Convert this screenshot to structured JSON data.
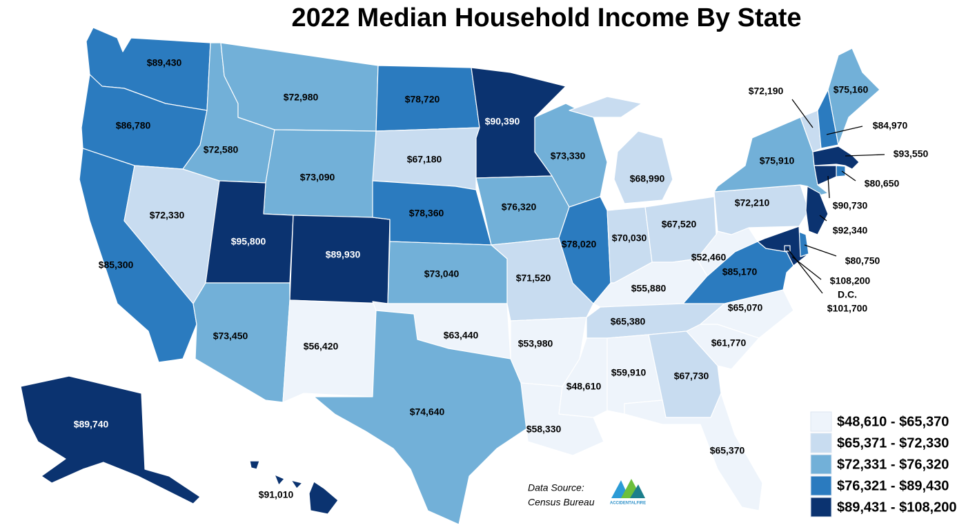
{
  "title": "2022 Median Household Income By State",
  "states": [
    {
      "label": "$89,430",
      "color": "#2b7bbf"
    },
    {
      "label": "$86,780",
      "color": "#2b7bbf"
    },
    {
      "label": "$85,300",
      "color": "#2b7bbf"
    },
    {
      "label": "$72,330",
      "color": "#c8dcf0"
    },
    {
      "label": "$72,580",
      "color": "#72b0d8"
    },
    {
      "label": "$72,980",
      "color": "#72b0d8"
    },
    {
      "label": "$73,090",
      "color": "#72b0d8"
    },
    {
      "label": "$95,800",
      "color": "#0b3370"
    },
    {
      "label": "$89,930",
      "color": "#0b3370"
    },
    {
      "label": "$73,450",
      "color": "#72b0d8"
    },
    {
      "label": "$56,420",
      "color": "#eef4fb"
    },
    {
      "label": "$78,720",
      "color": "#2b7bbf"
    },
    {
      "label": "$67,180",
      "color": "#c8dcf0"
    },
    {
      "label": "$78,360",
      "color": "#2b7bbf"
    },
    {
      "label": "$73,040",
      "color": "#72b0d8"
    },
    {
      "label": "$63,440",
      "color": "#eef4fb"
    },
    {
      "label": "$74,640",
      "color": "#72b0d8"
    },
    {
      "label": "$90,390",
      "color": "#0b3370"
    },
    {
      "label": "$76,320",
      "color": "#72b0d8"
    },
    {
      "label": "$71,520",
      "color": "#c8dcf0"
    },
    {
      "label": "$53,980",
      "color": "#eef4fb"
    },
    {
      "label": "$58,330",
      "color": "#eef4fb"
    },
    {
      "label": "$73,330",
      "color": "#72b0d8"
    },
    {
      "label": "$78,020",
      "color": "#2b7bbf"
    },
    {
      "label": "$68,990",
      "color": "#c8dcf0"
    },
    {
      "label": "$70,030",
      "color": "#c8dcf0"
    },
    {
      "label": "$67,520",
      "color": "#c8dcf0"
    },
    {
      "label": "$55,880",
      "color": "#eef4fb"
    },
    {
      "label": "$65,380",
      "color": "#c8dcf0"
    },
    {
      "label": "$48,610",
      "color": "#eef4fb"
    },
    {
      "label": "$59,910",
      "color": "#eef4fb"
    },
    {
      "label": "$67,730",
      "color": "#c8dcf0"
    },
    {
      "label": "$65,370",
      "color": "#eef4fb"
    },
    {
      "label": "$61,770",
      "color": "#eef4fb"
    },
    {
      "label": "$65,070",
      "color": "#eef4fb"
    },
    {
      "label": "$85,170",
      "color": "#2b7bbf"
    },
    {
      "label": "$52,460",
      "color": "#eef4fb"
    },
    {
      "label": "$72,210",
      "color": "#c8dcf0"
    },
    {
      "label": "$75,910",
      "color": "#72b0d8"
    },
    {
      "label": "$72,190",
      "color": "#c8dcf0"
    },
    {
      "label": "$84,970",
      "color": "#2b7bbf"
    },
    {
      "label": "$75,160",
      "color": "#72b0d8"
    },
    {
      "label": "$93,550",
      "color": "#0b3370"
    },
    {
      "label": "$80,650",
      "color": "#2b7bbf"
    },
    {
      "label": "$90,730",
      "color": "#0b3370"
    },
    {
      "label": "$92,340",
      "color": "#0b3370"
    },
    {
      "label": "$80,750",
      "color": "#2b7bbf"
    },
    {
      "label": "$108,200",
      "color": "#0b3370"
    },
    {
      "name": "D.C.",
      "label": "$101,700",
      "color": "#0b3370"
    },
    {
      "label": "$89,740",
      "color": "#0b3370"
    },
    {
      "label": "$91,010",
      "color": "#0b3370"
    }
  ],
  "legend": [
    {
      "label": "$48,610 - $65,370",
      "color": "#eef4fb"
    },
    {
      "label": "$65,371 - $72,330",
      "color": "#c8dcf0"
    },
    {
      "label": "$72,331 - $76,320",
      "color": "#72b0d8"
    },
    {
      "label": "$76,321 - $89,430",
      "color": "#2b7bbf"
    },
    {
      "label": "$89,431 - $108,200",
      "color": "#0b3370"
    }
  ],
  "source": {
    "line1": "Data Source:",
    "line2": "Census Bureau"
  },
  "logo": "ACCIDENTALFIRE"
}
